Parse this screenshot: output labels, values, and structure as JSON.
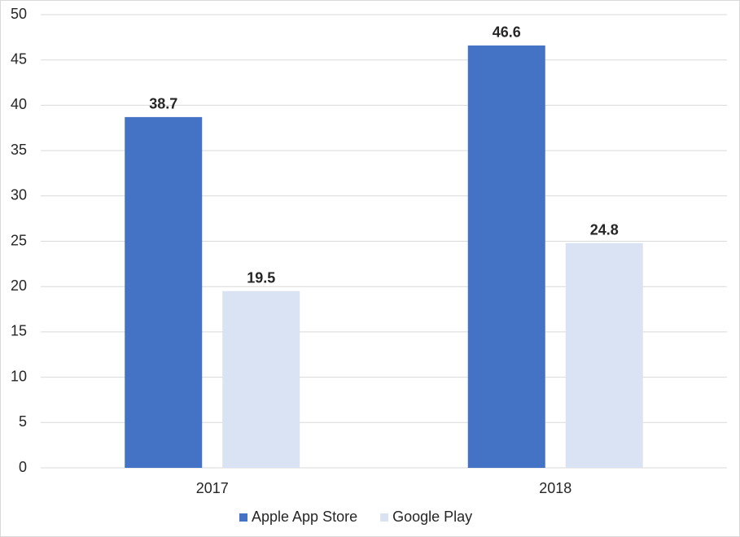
{
  "chart_data": {
    "type": "bar",
    "categories": [
      "2017",
      "2018"
    ],
    "series": [
      {
        "name": "Apple App Store",
        "color": "#4472c4",
        "values": [
          38.7,
          46.6
        ]
      },
      {
        "name": "Google Play",
        "color": "#dae3f3",
        "values": [
          19.5,
          24.8
        ]
      }
    ],
    "ylim": [
      0,
      50
    ],
    "yticks": [
      0,
      5,
      10,
      15,
      20,
      25,
      30,
      35,
      40,
      45,
      50
    ],
    "grid": true,
    "legend": "bottom"
  }
}
